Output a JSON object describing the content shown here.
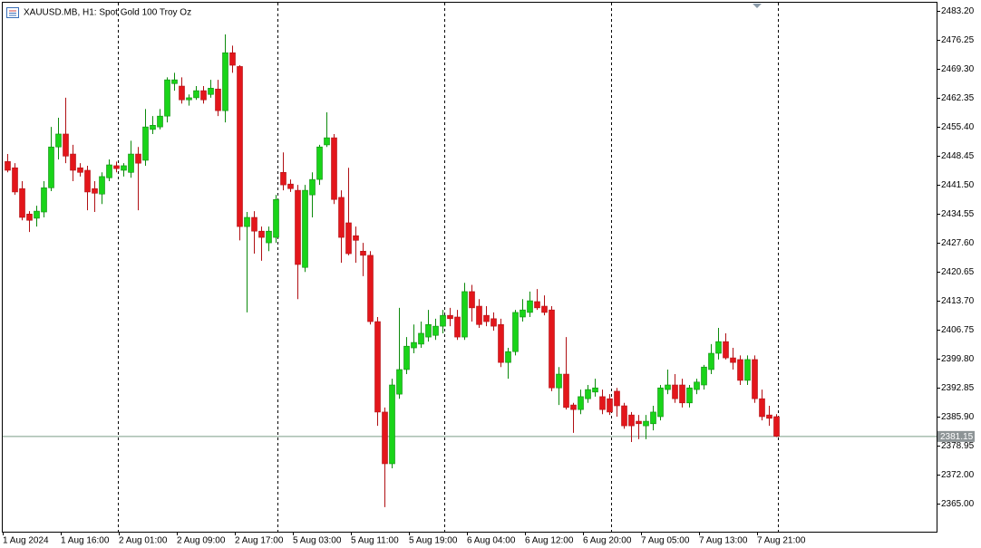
{
  "chart_data": {
    "type": "candlestick",
    "title": "XAUUSD.MB, H1:  Spot Gold 100 Troy Oz",
    "colors": {
      "up": "#19d419",
      "down": "#e3161b",
      "wick_up": "#0c8a0c",
      "wick_down": "#b01014",
      "price_line": "#7b9c88"
    },
    "current_price": 2381.15,
    "ylim": [
      2358.3,
      2485.2
    ],
    "yticks": [
      {
        "value": 2483.2,
        "label": "2483.20"
      },
      2476.25,
      {
        "value": 2469.3,
        "label": "2469.30"
      },
      2462.35,
      {
        "value": 2455.4,
        "label": "2455.40"
      },
      2448.45,
      {
        "value": 2441.5,
        "label": "2441.50"
      },
      2434.55,
      {
        "value": 2427.6,
        "label": "2427.60"
      },
      2420.65,
      {
        "value": 2413.7,
        "label": "2413.70"
      },
      2406.75,
      {
        "value": 2399.8,
        "label": "2399.80"
      },
      2392.85,
      {
        "value": 2385.9,
        "label": "2385.90"
      },
      2378.95,
      {
        "value": 2372,
        "label": "2372.00"
      },
      {
        "value": 2365,
        "label": "2365.00"
      }
    ],
    "categories": [
      "1 Aug 2024",
      null,
      null,
      null,
      null,
      null,
      null,
      null,
      "1 Aug 16:00",
      null,
      null,
      null,
      null,
      null,
      null,
      null,
      "2 Aug 01:00",
      null,
      null,
      null,
      null,
      null,
      null,
      null,
      "2 Aug 09:00",
      null,
      null,
      null,
      null,
      null,
      null,
      null,
      "2 Aug 17:00",
      null,
      null,
      null,
      null,
      null,
      null,
      null,
      "5 Aug 03:00",
      null,
      null,
      null,
      null,
      null,
      null,
      null,
      "5 Aug 11:00",
      null,
      null,
      null,
      null,
      null,
      null,
      null,
      "5 Aug 19:00",
      null,
      null,
      null,
      null,
      null,
      null,
      null,
      "6 Aug 04:00",
      null,
      null,
      null,
      null,
      null,
      null,
      null,
      "6 Aug 12:00",
      null,
      null,
      null,
      null,
      null,
      null,
      null,
      "6 Aug 20:00",
      null,
      null,
      null,
      null,
      null,
      null,
      null,
      "7 Aug 05:00",
      null,
      null,
      null,
      null,
      null,
      null,
      null,
      "7 Aug 13:00",
      null,
      null,
      null,
      null,
      null,
      null,
      null,
      "7 Aug 21:00",
      null,
      null
    ],
    "ohlc": [
      [
        2447.1,
        2448.9,
        2444.5,
        2445.0
      ],
      [
        2445.6,
        2446.7,
        2439.1,
        2439.8
      ],
      [
        2440.6,
        2442.4,
        2433.0,
        2433.7
      ],
      [
        2434.5,
        2435.2,
        2430.2,
        2433.0
      ],
      [
        2433.5,
        2436.5,
        2431.5,
        2435.2
      ],
      [
        2435.0,
        2442.4,
        2433.7,
        2440.8
      ],
      [
        2440.8,
        2455.4,
        2440.0,
        2450.6
      ],
      [
        2450.6,
        2457.6,
        2447.6,
        2453.7
      ],
      [
        2453.7,
        2462.4,
        2446.7,
        2448.4
      ],
      [
        2448.9,
        2451.1,
        2442.4,
        2445.0
      ],
      [
        2445.6,
        2446.7,
        2443.5,
        2444.5
      ],
      [
        2445.0,
        2446.1,
        2435.4,
        2439.8
      ],
      [
        2440.6,
        2442.4,
        2435.0,
        2439.5
      ],
      [
        2439.3,
        2444.5,
        2436.9,
        2443.5
      ],
      [
        2443.2,
        2447.6,
        2442.4,
        2446.3
      ],
      [
        2446.1,
        2447.1,
        2444.5,
        2445.4
      ],
      [
        2445.0,
        2446.7,
        2443.5,
        2446.1
      ],
      [
        2444.5,
        2452.1,
        2443.2,
        2448.9
      ],
      [
        2448.9,
        2450.6,
        2435.4,
        2446.7
      ],
      [
        2447.4,
        2459.7,
        2446.1,
        2455.4
      ],
      [
        2454.8,
        2458.0,
        2453.7,
        2455.8
      ],
      [
        2455.4,
        2459.7,
        2454.8,
        2458.0
      ],
      [
        2458.0,
        2467.3,
        2456.5,
        2466.7
      ],
      [
        2465.8,
        2468.4,
        2464.1,
        2466.7
      ],
      [
        2465.2,
        2467.3,
        2461.0,
        2461.9
      ],
      [
        2461.9,
        2463.2,
        2460.5,
        2462.4
      ],
      [
        2462.4,
        2465.2,
        2461.9,
        2464.1
      ],
      [
        2464.1,
        2465.2,
        2461.0,
        2461.9
      ],
      [
        2463.2,
        2466.7,
        2462.4,
        2464.7
      ],
      [
        2464.5,
        2466.7,
        2458.0,
        2459.3
      ],
      [
        2459.3,
        2477.6,
        2456.5,
        2473.2
      ],
      [
        2473.2,
        2474.9,
        2468.4,
        2470.2
      ],
      [
        2469.9,
        2470.2,
        2428.2,
        2431.5
      ],
      [
        2431.5,
        2435.0,
        2410.9,
        2433.7
      ],
      [
        2433.7,
        2435.2,
        2425.0,
        2430.4
      ],
      [
        2430.4,
        2431.5,
        2423.3,
        2428.9
      ],
      [
        2427.6,
        2431.5,
        2425.6,
        2430.4
      ],
      [
        2428.9,
        2439.1,
        2427.6,
        2438.0
      ],
      [
        2444.5,
        2449.3,
        2440.2,
        2441.5
      ],
      [
        2441.7,
        2442.8,
        2439.8,
        2440.6
      ],
      [
        2440.2,
        2441.5,
        2414.1,
        2422.4
      ],
      [
        2421.7,
        2441.5,
        2420.6,
        2440.2
      ],
      [
        2439.1,
        2444.5,
        2433.7,
        2442.8
      ],
      [
        2442.8,
        2451.1,
        2441.5,
        2450.6
      ],
      [
        2451.1,
        2458.9,
        2450.6,
        2452.8
      ],
      [
        2452.8,
        2453.7,
        2436.9,
        2438.0
      ],
      [
        2438.5,
        2440.2,
        2422.8,
        2428.9
      ],
      [
        2432.4,
        2445.6,
        2424.6,
        2425.0
      ],
      [
        2429.3,
        2431.5,
        2422.8,
        2428.2
      ],
      [
        2425.6,
        2427.6,
        2419.6,
        2424.6
      ],
      [
        2424.6,
        2425.6,
        2408.0,
        2408.7
      ],
      [
        2408.7,
        2409.8,
        2383.7,
        2387.0
      ],
      [
        2387.0,
        2388.1,
        2364.2,
        2374.6
      ],
      [
        2374.6,
        2395.0,
        2373.5,
        2393.5
      ],
      [
        2391.3,
        2412.0,
        2390.2,
        2397.2
      ],
      [
        2397.2,
        2405.0,
        2396.1,
        2402.8
      ],
      [
        2402.4,
        2408.0,
        2401.1,
        2403.7
      ],
      [
        2403.3,
        2408.7,
        2402.4,
        2405.9
      ],
      [
        2405.0,
        2411.5,
        2403.9,
        2408.0
      ],
      [
        2405.4,
        2409.4,
        2404.3,
        2407.6
      ],
      [
        2407.6,
        2411.5,
        2405.9,
        2410.2
      ],
      [
        2410.2,
        2412.0,
        2407.6,
        2409.4
      ],
      [
        2409.8,
        2411.5,
        2404.3,
        2405.0
      ],
      [
        2405.0,
        2418.0,
        2404.3,
        2415.9
      ],
      [
        2415.9,
        2417.5,
        2408.7,
        2412.0
      ],
      [
        2412.4,
        2414.1,
        2407.2,
        2408.0
      ],
      [
        2410.2,
        2412.4,
        2407.6,
        2408.7
      ],
      [
        2409.4,
        2410.9,
        2406.5,
        2407.6
      ],
      [
        2408.0,
        2409.4,
        2397.8,
        2398.9
      ],
      [
        2398.9,
        2402.4,
        2395.0,
        2401.5
      ],
      [
        2401.5,
        2411.5,
        2400.6,
        2410.9
      ],
      [
        2409.8,
        2414.1,
        2408.7,
        2411.5
      ],
      [
        2410.9,
        2415.9,
        2409.8,
        2413.7
      ],
      [
        2413.5,
        2416.5,
        2411.5,
        2412.0
      ],
      [
        2412.4,
        2415.0,
        2410.2,
        2410.9
      ],
      [
        2411.5,
        2412.4,
        2392.0,
        2392.8
      ],
      [
        2392.8,
        2397.8,
        2388.7,
        2396.1
      ],
      [
        2396.1,
        2405.0,
        2387.6,
        2388.1
      ],
      [
        2388.7,
        2389.2,
        2382.0,
        2387.6
      ],
      [
        2387.6,
        2392.4,
        2386.5,
        2390.7
      ],
      [
        2390.2,
        2393.5,
        2389.2,
        2392.4
      ],
      [
        2391.8,
        2395.0,
        2390.7,
        2392.8
      ],
      [
        2390.7,
        2392.4,
        2386.5,
        2387.6
      ],
      [
        2390.2,
        2391.3,
        2386.3,
        2387.0
      ],
      [
        2392.0,
        2392.8,
        2385.9,
        2388.5
      ],
      [
        2388.5,
        2389.2,
        2383.0,
        2383.7
      ],
      [
        2386.3,
        2387.0,
        2379.8,
        2383.7
      ],
      [
        2384.8,
        2386.3,
        2380.5,
        2384.2
      ],
      [
        2383.7,
        2386.3,
        2380.5,
        2384.8
      ],
      [
        2384.2,
        2388.5,
        2382.6,
        2387.0
      ],
      [
        2385.9,
        2393.5,
        2385.0,
        2392.8
      ],
      [
        2392.4,
        2397.2,
        2391.3,
        2393.5
      ],
      [
        2393.5,
        2396.1,
        2389.2,
        2390.2
      ],
      [
        2393.5,
        2395.0,
        2388.1,
        2389.2
      ],
      [
        2389.2,
        2393.5,
        2388.1,
        2392.8
      ],
      [
        2392.4,
        2395.0,
        2391.3,
        2394.2
      ],
      [
        2393.5,
        2398.3,
        2392.4,
        2397.8
      ],
      [
        2397.2,
        2403.3,
        2396.1,
        2401.1
      ],
      [
        2401.1,
        2407.2,
        2399.6,
        2403.9
      ],
      [
        2403.9,
        2405.9,
        2399.6,
        2400.0
      ],
      [
        2400.0,
        2402.4,
        2397.2,
        2398.9
      ],
      [
        2399.6,
        2400.6,
        2393.5,
        2394.6
      ],
      [
        2394.6,
        2400.6,
        2393.5,
        2399.6
      ],
      [
        2399.6,
        2400.6,
        2389.2,
        2390.2
      ],
      [
        2390.2,
        2392.4,
        2385.0,
        2385.9
      ],
      [
        2386.3,
        2388.5,
        2383.7,
        2385.5
      ],
      [
        2385.9,
        2386.5,
        2381.0,
        2381.2
      ]
    ]
  }
}
